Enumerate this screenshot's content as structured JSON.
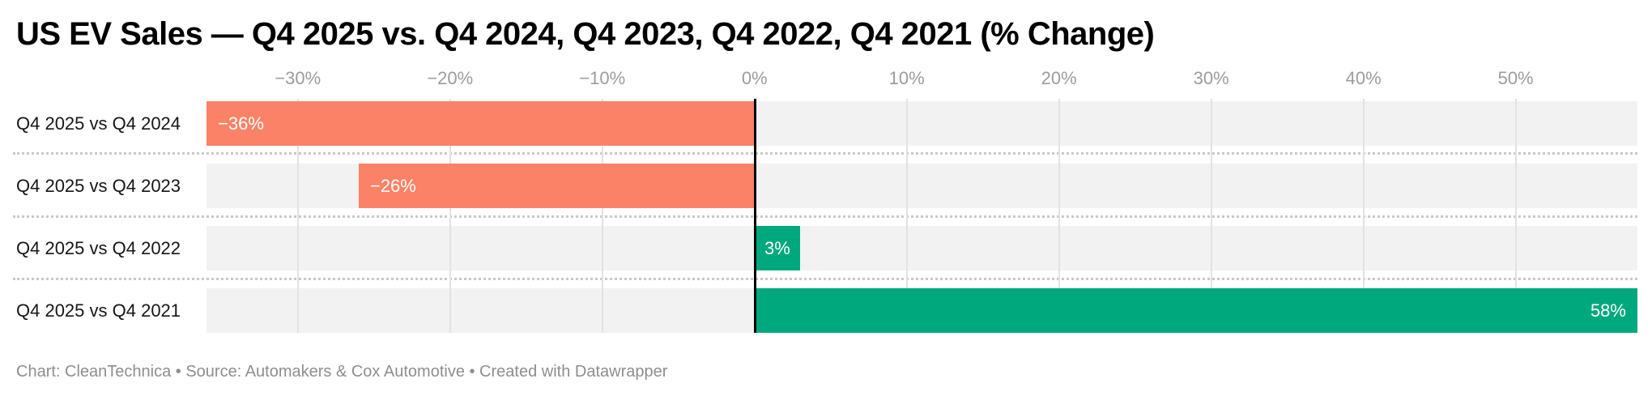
{
  "title": "US EV Sales — Q4 2025 vs. Q4 2024, Q4 2023, Q4 2022, Q4 2021 (% Change)",
  "footer": "Chart: CleanTechnica • Source: Automakers & Cox Automotive • Created with Datawrapper",
  "chart_data": {
    "type": "bar",
    "orientation": "horizontal",
    "title": "US EV Sales — Q4 2025 vs. Q4 2024, Q4 2023, Q4 2022, Q4 2021 (% Change)",
    "categories": [
      "Q4 2025 vs Q4 2024",
      "Q4 2025 vs Q4 2023",
      "Q4 2025 vs Q4 2022",
      "Q4 2025 vs Q4 2021"
    ],
    "values": [
      -36,
      -26,
      3,
      58
    ],
    "bar_labels": [
      "−36%",
      "−26%",
      "3%",
      "58%"
    ],
    "label_align": [
      "left",
      "left",
      "center",
      "right"
    ],
    "xlim": [
      -36,
      58
    ],
    "x_ticks": [
      {
        "value": -30,
        "label": "−30%"
      },
      {
        "value": -20,
        "label": "−20%"
      },
      {
        "value": -10,
        "label": "−10%"
      },
      {
        "value": 0,
        "label": "0%"
      },
      {
        "value": 10,
        "label": "10%"
      },
      {
        "value": 20,
        "label": "20%"
      },
      {
        "value": 30,
        "label": "30%"
      },
      {
        "value": 40,
        "label": "40%"
      },
      {
        "value": 50,
        "label": "50%"
      }
    ],
    "grid": true,
    "legend": "none",
    "colors": {
      "negative": "#fb8266",
      "positive": "#00a87d",
      "row_track": "#f2f2f2",
      "gridline": "#e2e2e2",
      "zero_line": "#000000",
      "separator": "#c9c9c9"
    },
    "xlabel": "",
    "ylabel": ""
  }
}
